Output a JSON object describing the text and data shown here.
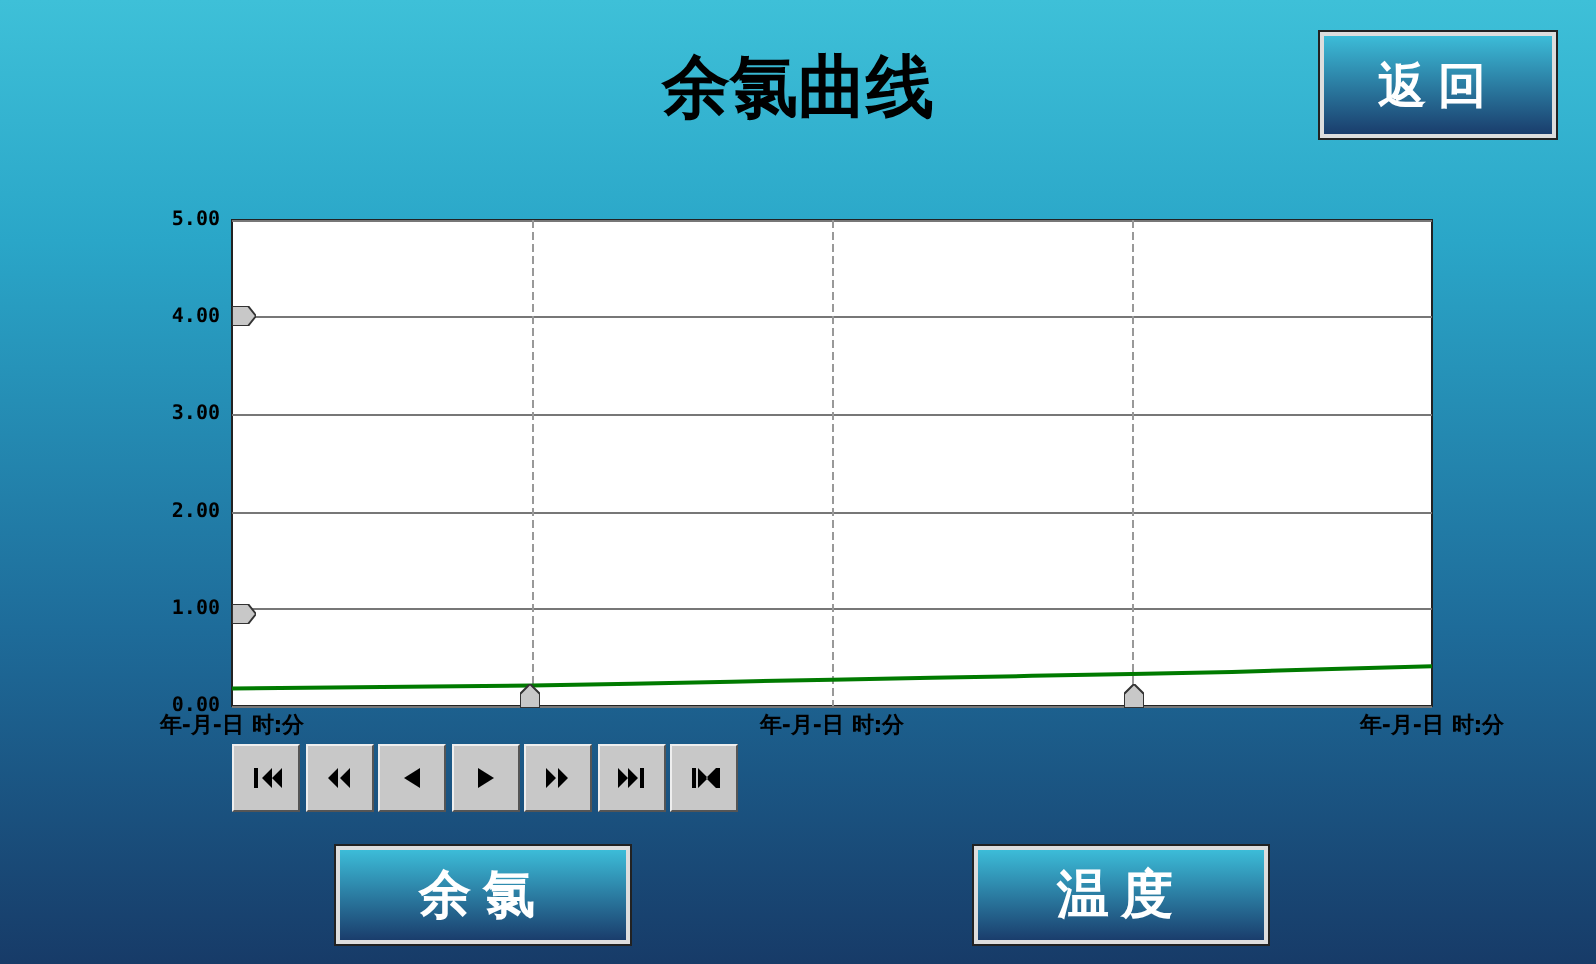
{
  "chart_data": {
    "type": "line",
    "title": "余氯曲线",
    "categories": [
      "年-月-日 时:分",
      null,
      null,
      null,
      null,
      null,
      "年-月-日 时:分",
      null,
      null,
      null,
      null,
      null,
      "年-月-日 时:分"
    ],
    "series": [
      {
        "color": "#007a00",
        "values": [
          0.18,
          0.19,
          0.2,
          0.21,
          0.23,
          0.25,
          0.27,
          0.29,
          0.31,
          0.33,
          0.35,
          0.38,
          0.41
        ]
      }
    ],
    "ylim": [
      0,
      5
    ],
    "yticks": [
      {
        "value": 0,
        "label": "0.00"
      },
      {
        "value": 1,
        "label": "1.00"
      },
      {
        "value": 2,
        "label": "2.00"
      },
      {
        "value": 3,
        "label": "3.00"
      },
      {
        "value": 4,
        "label": "4.00"
      },
      {
        "value": 5,
        "label": "5.00"
      }
    ],
    "grid": true,
    "marker": "none",
    "annotations": [
      "返回",
      "余氯",
      "温度"
    ]
  }
}
